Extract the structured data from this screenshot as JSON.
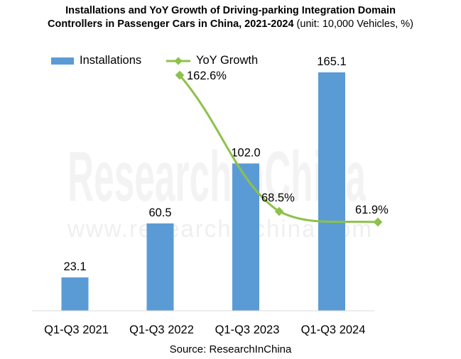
{
  "chart_data": {
    "type": "bar+line",
    "title_bold": "Installations and YoY Growth of Driving-parking Integration Domain Controllers in Passenger Cars in China, 2021-2024",
    "title_line1": "Installations and YoY Growth of Driving-parking Integration Domain",
    "title_line2_bold": "Controllers in Passenger Cars in China, 2021-2024",
    "title_unit": " (unit: 10,000 Vehicles, %)",
    "categories": [
      "Q1-Q3 2021",
      "Q1-Q3 2022",
      "Q1-Q3 2023",
      "Q1-Q3 2024"
    ],
    "series": [
      {
        "name": "Installations",
        "type": "bar",
        "values": [
          23.1,
          60.5,
          102.0,
          165.1
        ],
        "labels": [
          "23.1",
          "60.5",
          "102.0",
          "165.1"
        ],
        "color": "#5b9bd5"
      },
      {
        "name": "YoY Growth",
        "type": "line",
        "values": [
          null,
          162.6,
          68.5,
          61.9
        ],
        "labels": [
          "",
          "162.6%",
          "68.5%",
          "61.9%"
        ],
        "color": "#8dc14a"
      }
    ],
    "ylim": [
      0,
      170
    ],
    "y2lim": [
      0,
      200
    ],
    "legend": "top-left",
    "grid": false,
    "source": "Source: ResearchInChina",
    "watermark": [
      "ResearchInChina",
      "www.researchinchina.com"
    ]
  }
}
